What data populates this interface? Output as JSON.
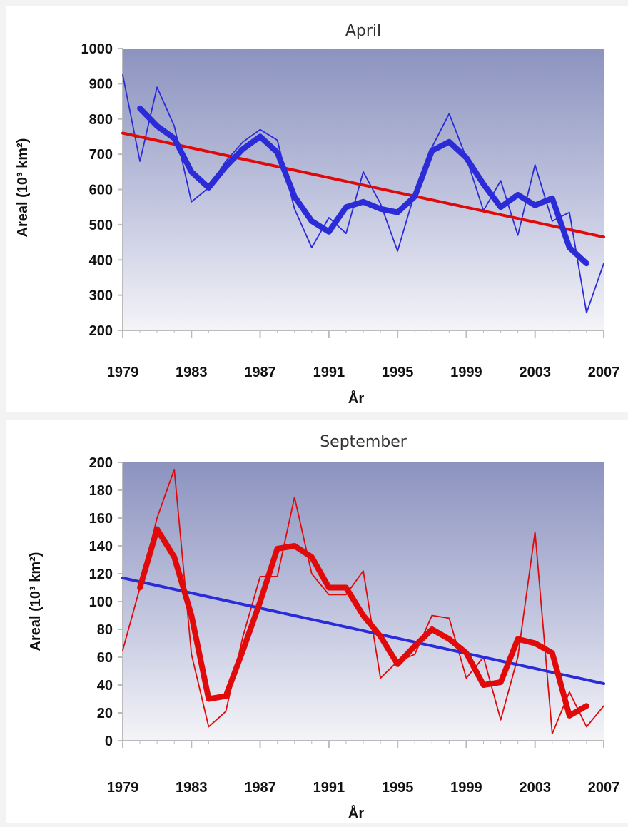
{
  "colors": {
    "blue": "#2b2bd8",
    "red": "#e00a0a",
    "axis": "#bbbbbb"
  },
  "chart_data": [
    {
      "type": "line",
      "title": "April",
      "xlabel": "År",
      "ylabel": "Areal (10³ km²)",
      "xlim": [
        1979,
        2007
      ],
      "ylim": [
        200,
        1000
      ],
      "x_ticks": [
        1979,
        1983,
        1987,
        1991,
        1995,
        1999,
        2003,
        2007
      ],
      "y_ticks": [
        200,
        300,
        400,
        500,
        600,
        700,
        800,
        900,
        1000
      ],
      "grid": false,
      "series": [
        {
          "style": "thin",
          "color": "blue",
          "x": [
            1979,
            1980,
            1981,
            1982,
            1983,
            1984,
            1985,
            1986,
            1987,
            1988,
            1989,
            1990,
            1991,
            1992,
            1993,
            1994,
            1995,
            1996,
            1997,
            1998,
            1999,
            2000,
            2001,
            2002,
            2003,
            2004,
            2005,
            2006,
            2007
          ],
          "y": [
            925,
            680,
            890,
            780,
            565,
            605,
            680,
            735,
            770,
            740,
            545,
            435,
            520,
            475,
            650,
            560,
            425,
            590,
            720,
            815,
            690,
            540,
            625,
            470,
            670,
            510,
            535,
            250,
            390
          ]
        },
        {
          "style": "smoothed",
          "color": "blue",
          "x": [
            1980,
            1981,
            1982,
            1983,
            1984,
            1985,
            1986,
            1987,
            1988,
            1989,
            1990,
            1991,
            1992,
            1993,
            1994,
            1995,
            1996,
            1997,
            1998,
            1999,
            2000,
            2001,
            2002,
            2003,
            2004,
            2005,
            2006
          ],
          "y": [
            830,
            780,
            745,
            650,
            605,
            665,
            715,
            750,
            705,
            580,
            510,
            480,
            550,
            565,
            545,
            535,
            580,
            710,
            735,
            690,
            615,
            550,
            585,
            555,
            575,
            435,
            390
          ]
        },
        {
          "style": "trend",
          "color": "red",
          "x": [
            1979,
            2007
          ],
          "y": [
            760,
            465
          ]
        }
      ]
    },
    {
      "type": "line",
      "title": "September",
      "xlabel": "År",
      "ylabel": "Areal (10³ km²)",
      "xlim": [
        1979,
        2007
      ],
      "ylim": [
        0,
        200
      ],
      "x_ticks": [
        1979,
        1983,
        1987,
        1991,
        1995,
        1999,
        2003,
        2007
      ],
      "y_ticks": [
        0,
        20,
        40,
        60,
        80,
        100,
        120,
        140,
        160,
        180,
        200
      ],
      "grid": false,
      "series": [
        {
          "style": "thin",
          "color": "red",
          "x": [
            1979,
            1980,
            1981,
            1982,
            1983,
            1984,
            1985,
            1986,
            1987,
            1988,
            1989,
            1990,
            1991,
            1992,
            1993,
            1994,
            1995,
            1996,
            1997,
            1998,
            1999,
            2000,
            2001,
            2002,
            2003,
            2004,
            2005,
            2006,
            2007
          ],
          "y": [
            65,
            110,
            160,
            195,
            62,
            10,
            21,
            75,
            118,
            118,
            175,
            120,
            105,
            105,
            122,
            45,
            57,
            62,
            90,
            88,
            45,
            60,
            15,
            60,
            150,
            5,
            35,
            10,
            25
          ]
        },
        {
          "style": "smoothed",
          "color": "red",
          "x": [
            1980,
            1981,
            1982,
            1983,
            1984,
            1985,
            1986,
            1987,
            1988,
            1989,
            1990,
            1991,
            1992,
            1993,
            1994,
            1995,
            1996,
            1997,
            1998,
            1999,
            2000,
            2001,
            2002,
            2003,
            2004,
            2005,
            2006
          ],
          "y": [
            110,
            152,
            132,
            90,
            30,
            32,
            65,
            100,
            138,
            140,
            132,
            110,
            110,
            90,
            75,
            55,
            68,
            80,
            73,
            63,
            40,
            42,
            73,
            70,
            63,
            18,
            25
          ]
        },
        {
          "style": "trend",
          "color": "blue",
          "x": [
            1979,
            2007
          ],
          "y": [
            117,
            41
          ]
        }
      ]
    }
  ]
}
